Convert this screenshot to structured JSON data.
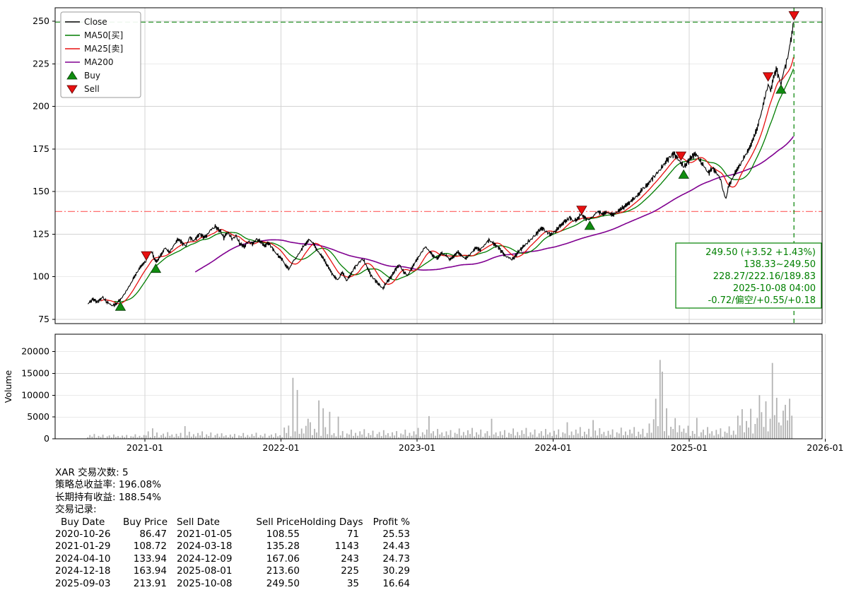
{
  "chart_data": {
    "type": "line",
    "title": "",
    "x_axis": {
      "ticks": [
        "2021-01",
        "2022-01",
        "2023-01",
        "2024-01",
        "2025-01",
        "2026-01"
      ],
      "tick_years": [
        2021,
        2022,
        2023,
        2024,
        2025,
        2026
      ],
      "range": [
        2020.34,
        2025.977
      ]
    },
    "price_axis": {
      "ticks": [
        75,
        100,
        125,
        150,
        175,
        200,
        225,
        250
      ],
      "range": [
        72.5,
        257.9
      ]
    },
    "volume_axis": {
      "label": "Volume",
      "ticks": [
        0,
        5000,
        10000,
        15000,
        20000
      ],
      "range": [
        0,
        24000
      ]
    },
    "series": {
      "close": {
        "name": "Close",
        "color": "#000000",
        "anchors": [
          [
            2020.58,
            84
          ],
          [
            2020.62,
            87
          ],
          [
            2020.65,
            85
          ],
          [
            2020.69,
            88
          ],
          [
            2020.72,
            85
          ],
          [
            2020.76,
            83
          ],
          [
            2020.79,
            84
          ],
          [
            2020.82,
            86.5
          ],
          [
            2020.85,
            90
          ],
          [
            2020.89,
            95
          ],
          [
            2020.93,
            101
          ],
          [
            2020.97,
            106
          ],
          [
            2021.01,
            109.5
          ],
          [
            2021.03,
            113
          ],
          [
            2021.05,
            115
          ],
          [
            2021.07,
            110
          ],
          [
            2021.09,
            109
          ],
          [
            2021.12,
            113
          ],
          [
            2021.15,
            117
          ],
          [
            2021.18,
            114
          ],
          [
            2021.21,
            118
          ],
          [
            2021.24,
            122
          ],
          [
            2021.27,
            120
          ],
          [
            2021.3,
            118
          ],
          [
            2021.33,
            123
          ],
          [
            2021.36,
            121
          ],
          [
            2021.4,
            125
          ],
          [
            2021.44,
            123
          ],
          [
            2021.48,
            127
          ],
          [
            2021.52,
            129.5
          ],
          [
            2021.55,
            127
          ],
          [
            2021.58,
            123
          ],
          [
            2021.61,
            126
          ],
          [
            2021.64,
            122
          ],
          [
            2021.67,
            124
          ],
          [
            2021.7,
            119
          ],
          [
            2021.73,
            117.5
          ],
          [
            2021.76,
            121
          ],
          [
            2021.79,
            119
          ],
          [
            2021.82,
            122
          ],
          [
            2021.85,
            120.5
          ],
          [
            2021.88,
            118
          ],
          [
            2021.91,
            120
          ],
          [
            2021.94,
            116
          ],
          [
            2021.97,
            113
          ],
          [
            2022,
            111
          ],
          [
            2022.03,
            107
          ],
          [
            2022.06,
            104.5
          ],
          [
            2022.09,
            109
          ],
          [
            2022.12,
            112
          ],
          [
            2022.15,
            116
          ],
          [
            2022.18,
            119
          ],
          [
            2022.21,
            122
          ],
          [
            2022.24,
            119
          ],
          [
            2022.27,
            115
          ],
          [
            2022.3,
            112
          ],
          [
            2022.33,
            108
          ],
          [
            2022.36,
            104
          ],
          [
            2022.39,
            100
          ],
          [
            2022.42,
            98
          ],
          [
            2022.45,
            103
          ],
          [
            2022.48,
            97.5
          ],
          [
            2022.51,
            101
          ],
          [
            2022.54,
            105
          ],
          [
            2022.57,
            108
          ],
          [
            2022.6,
            110.5
          ],
          [
            2022.63,
            106
          ],
          [
            2022.66,
            101
          ],
          [
            2022.69,
            98
          ],
          [
            2022.72,
            95.5
          ],
          [
            2022.75,
            93
          ],
          [
            2022.78,
            97
          ],
          [
            2022.81,
            100
          ],
          [
            2022.84,
            104
          ],
          [
            2022.87,
            107
          ],
          [
            2022.9,
            103
          ],
          [
            2022.93,
            100.5
          ],
          [
            2022.96,
            105
          ],
          [
            2023,
            110
          ],
          [
            2023.03,
            114
          ],
          [
            2023.06,
            117.5
          ],
          [
            2023.09,
            115
          ],
          [
            2023.12,
            112
          ],
          [
            2023.15,
            110.5
          ],
          [
            2023.18,
            114
          ],
          [
            2023.21,
            112.5
          ],
          [
            2023.24,
            110
          ],
          [
            2023.27,
            112
          ],
          [
            2023.3,
            114.5
          ],
          [
            2023.33,
            112
          ],
          [
            2023.36,
            110.5
          ],
          [
            2023.4,
            114
          ],
          [
            2023.43,
            117
          ],
          [
            2023.46,
            115.5
          ],
          [
            2023.5,
            119
          ],
          [
            2023.53,
            121.5
          ],
          [
            2023.56,
            119.5
          ],
          [
            2023.6,
            117
          ],
          [
            2023.63,
            114
          ],
          [
            2023.66,
            111.5
          ],
          [
            2023.7,
            110
          ],
          [
            2023.73,
            113
          ],
          [
            2023.76,
            116
          ],
          [
            2023.8,
            119
          ],
          [
            2023.84,
            122
          ],
          [
            2023.88,
            125.5
          ],
          [
            2023.92,
            128.5
          ],
          [
            2023.95,
            126.5
          ],
          [
            2023.98,
            124.5
          ],
          [
            2024.02,
            127
          ],
          [
            2024.05,
            129.5
          ],
          [
            2024.08,
            132
          ],
          [
            2024.12,
            134.5
          ],
          [
            2024.15,
            132.5
          ],
          [
            2024.18,
            134
          ],
          [
            2024.21,
            136.5
          ],
          [
            2024.24,
            134
          ],
          [
            2024.27,
            133.5
          ],
          [
            2024.3,
            136
          ],
          [
            2024.33,
            138.5
          ],
          [
            2024.36,
            136.5
          ],
          [
            2024.4,
            138
          ],
          [
            2024.43,
            136
          ],
          [
            2024.46,
            137.5
          ],
          [
            2024.5,
            139.5
          ],
          [
            2024.53,
            141.5
          ],
          [
            2024.56,
            143.5
          ],
          [
            2024.6,
            146
          ],
          [
            2024.63,
            148.5
          ],
          [
            2024.66,
            151.5
          ],
          [
            2024.7,
            154.5
          ],
          [
            2024.73,
            157.5
          ],
          [
            2024.76,
            160.5
          ],
          [
            2024.8,
            164
          ],
          [
            2024.83,
            167.5
          ],
          [
            2024.86,
            170.5
          ],
          [
            2024.89,
            172
          ],
          [
            2024.92,
            169
          ],
          [
            2024.94,
            166.5
          ],
          [
            2024.96,
            164
          ],
          [
            2024.99,
            167.5
          ],
          [
            2025.02,
            170.5
          ],
          [
            2025.05,
            172
          ],
          [
            2025.08,
            168
          ],
          [
            2025.11,
            164.5
          ],
          [
            2025.14,
            161
          ],
          [
            2025.17,
            163.5
          ],
          [
            2025.2,
            161
          ],
          [
            2025.23,
            157.5
          ],
          [
            2025.25,
            150
          ],
          [
            2025.27,
            145.5
          ],
          [
            2025.29,
            153
          ],
          [
            2025.32,
            158
          ],
          [
            2025.35,
            162.5
          ],
          [
            2025.38,
            166.5
          ],
          [
            2025.41,
            170.5
          ],
          [
            2025.44,
            175
          ],
          [
            2025.47,
            180.5
          ],
          [
            2025.5,
            187
          ],
          [
            2025.53,
            196
          ],
          [
            2025.56,
            206
          ],
          [
            2025.58,
            212.5
          ],
          [
            2025.6,
            209.5
          ],
          [
            2025.62,
            217
          ],
          [
            2025.645,
            221.5
          ],
          [
            2025.66,
            216.5
          ],
          [
            2025.675,
            213
          ],
          [
            2025.69,
            219
          ],
          [
            2025.71,
            224
          ],
          [
            2025.73,
            231
          ],
          [
            2025.75,
            240
          ],
          [
            2025.77,
            249.5
          ]
        ]
      },
      "ma50": {
        "name": "MA50[买]",
        "color": "#007d00",
        "window": 50
      },
      "ma25": {
        "name": "MA25[卖]",
        "color": "#e81010",
        "window": 25
      },
      "ma200": {
        "name": "MA200",
        "color": "#800090",
        "window": 200
      }
    },
    "markers": {
      "buy": {
        "name": "Buy",
        "color": "#0f8c0f",
        "points": [
          [
            2020.82,
            86.47
          ],
          [
            2021.08,
            108.72
          ],
          [
            2024.27,
            133.94
          ],
          [
            2024.96,
            163.94
          ],
          [
            2025.675,
            213.91
          ]
        ]
      },
      "sell": {
        "name": "Sell",
        "color": "#e81010",
        "points": [
          [
            2021.01,
            108.55
          ],
          [
            2024.21,
            135.28
          ],
          [
            2024.94,
            167.06
          ],
          [
            2025.58,
            213.6
          ],
          [
            2025.77,
            249.5
          ]
        ]
      }
    },
    "hlines": [
      {
        "y": 249.5,
        "color": "#008000",
        "dash": "7 4",
        "opacity": 0.9,
        "name": "current-price-hline"
      },
      {
        "y": 138.33,
        "color": "#ff2a2a",
        "dash": "10 3 2 3",
        "opacity": 0.75,
        "name": "range-low-hline"
      }
    ],
    "vlines": [
      {
        "x": 2025.77,
        "color": "#008000",
        "dash": "6 5",
        "name": "current-date-vline"
      }
    ],
    "annotation": {
      "color": "#008000",
      "lines": [
        "249.50 (+3.52 +1.43%)",
        "138.33~249.50",
        "228.27/222.16/189.83",
        "2025-10-08 04:00",
        "-0.72/偏空/+0.55/+0.18"
      ]
    },
    "volume": {
      "color": "#b3b3b3",
      "range": [
        2020.58,
        2025.77
      ],
      "pattern": [
        0.32,
        0.78,
        0.45,
        1.0,
        0.22,
        0.6,
        0.38,
        0.85,
        0.18,
        0.5,
        0.7,
        0.28,
        0.9,
        0.4,
        0.58,
        0.25,
        0.68,
        0.35,
        0.8,
        0.15,
        0.55,
        0.45,
        0.95,
        0.3,
        0.62
      ],
      "segments": [
        {
          "from": 2020.58,
          "to": 2021.0,
          "scale": 1100
        },
        {
          "from": 2021.0,
          "to": 2021.55,
          "scale": 1700
        },
        {
          "from": 2021.55,
          "to": 2022.02,
          "scale": 1400
        },
        {
          "from": 2022.02,
          "to": 2022.35,
          "scale": 3800
        },
        {
          "from": 2022.35,
          "to": 2023.0,
          "scale": 2200
        },
        {
          "from": 2023.0,
          "to": 2024.0,
          "scale": 2500
        },
        {
          "from": 2024.0,
          "to": 2024.7,
          "scale": 2700
        },
        {
          "from": 2024.7,
          "to": 2024.95,
          "scale": 5000
        },
        {
          "from": 2024.95,
          "to": 2025.35,
          "scale": 3000
        },
        {
          "from": 2025.35,
          "to": 2025.78,
          "scale": 6800
        }
      ],
      "spikes": [
        [
          2021.06,
          2400
        ],
        [
          2021.3,
          2900
        ],
        [
          2022.08,
          14000
        ],
        [
          2022.12,
          11200
        ],
        [
          2022.2,
          4600
        ],
        [
          2022.28,
          8800
        ],
        [
          2022.31,
          7000
        ],
        [
          2022.36,
          6200
        ],
        [
          2022.42,
          5100
        ],
        [
          2023.08,
          5200
        ],
        [
          2023.55,
          4600
        ],
        [
          2024.1,
          3800
        ],
        [
          2024.3,
          4300
        ],
        [
          2024.75,
          9200
        ],
        [
          2024.78,
          18100
        ],
        [
          2024.8,
          15400
        ],
        [
          2024.83,
          7000
        ],
        [
          2025.05,
          4800
        ],
        [
          2025.45,
          6900
        ],
        [
          2025.52,
          10000
        ],
        [
          2025.56,
          8600
        ],
        [
          2025.61,
          17400
        ],
        [
          2025.65,
          9400
        ],
        [
          2025.7,
          7800
        ],
        [
          2025.74,
          9200
        ]
      ]
    }
  },
  "legend": {
    "items": [
      {
        "label": "Close",
        "type": "line",
        "color": "#000000"
      },
      {
        "label": "MA50[买]",
        "type": "line",
        "color": "#007d00"
      },
      {
        "label": "MA25[卖]",
        "type": "line",
        "color": "#e81010"
      },
      {
        "label": "MA200",
        "type": "line",
        "color": "#800090"
      },
      {
        "label": "Buy",
        "type": "marker-up",
        "color": "#0f8c0f"
      },
      {
        "label": "Sell",
        "type": "marker-down",
        "color": "#e81010"
      }
    ]
  },
  "stats": {
    "symbol_trades": "XAR 交易次数: 5",
    "total_return": "策略总收益率: 196.08%",
    "hold_return": "长期持有收益: 188.54%",
    "records_label": "交易记录:",
    "table": {
      "headers": [
        "Buy Date",
        "Buy Price",
        "Sell Date",
        "Sell Price",
        "Holding Days",
        "Profit %"
      ],
      "rows": [
        [
          "2020-10-26",
          "86.47",
          "2021-01-05",
          "108.55",
          "71",
          "25.53"
        ],
        [
          "2021-01-29",
          "108.72",
          "2024-03-18",
          "135.28",
          "1143",
          "24.43"
        ],
        [
          "2024-04-10",
          "133.94",
          "2024-12-09",
          "167.06",
          "243",
          "24.73"
        ],
        [
          "2024-12-18",
          "163.94",
          "2025-08-01",
          "213.60",
          "225",
          "30.29"
        ],
        [
          "2025-09-03",
          "213.91",
          "2025-10-08",
          "249.50",
          "35",
          "16.64"
        ]
      ]
    }
  }
}
